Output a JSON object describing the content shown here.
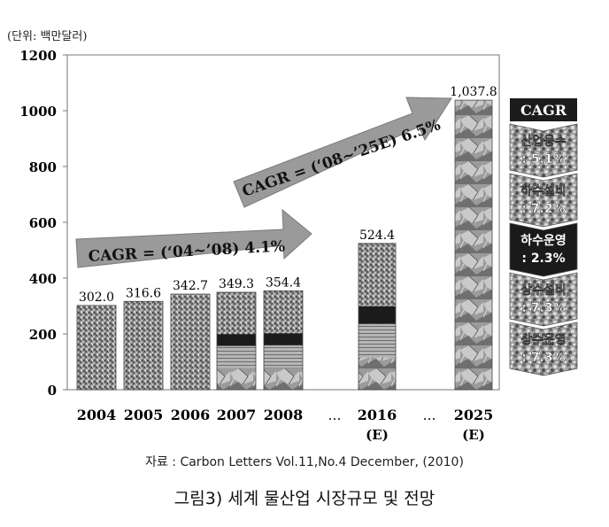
{
  "unit_label": "(단위: 백만달러)",
  "source": "자료 : Carbon Letters Vol.11,No.4 December, (2010)",
  "caption": "그림3) 세계 물산업 시장규모 및 전망",
  "ellipsis": "…",
  "chart_data": {
    "type": "bar",
    "categories": [
      "2004",
      "2005",
      "2006",
      "2007",
      "2008",
      "2016",
      "2025"
    ],
    "category_sublabels": [
      "",
      "",
      "",
      "",
      "",
      "(E)",
      "(E)"
    ],
    "values": [
      302.0,
      316.6,
      342.7,
      349.3,
      354.4,
      524.4,
      1037.8
    ],
    "value_labels": [
      "302.0",
      "316.6",
      "342.7",
      "349.3",
      "354.4",
      "524.4",
      "1,037.8"
    ],
    "ylim": [
      0,
      1200
    ],
    "yticks": [
      0,
      200,
      400,
      600,
      800,
      1000,
      1200
    ],
    "grid": false,
    "annotations": [
      {
        "text": "CAGR = (‘04~’08) 4.1%",
        "kind": "arrow"
      },
      {
        "text": "CAGR = (‘08~’25E) 6.5%",
        "kind": "arrow"
      }
    ],
    "legend": {
      "title": "CAGR",
      "placement": "right",
      "entries": [
        {
          "lines": [
            "산업용수",
            ": 5.1%"
          ],
          "fill": "#8a8a8a"
        },
        {
          "lines": [
            "하수설비",
            ": 7.2%"
          ],
          "fill": "#9a9a9a"
        },
        {
          "lines": [
            "하수운영",
            ": 2.3%"
          ],
          "fill": "#1a1a1a"
        },
        {
          "lines": [
            "상수설비",
            ": 7.3%"
          ],
          "fill": "#8f8f8f"
        },
        {
          "lines": [
            "상수운영",
            ": 7.3%"
          ],
          "fill": "#7d7d7d"
        }
      ]
    }
  }
}
